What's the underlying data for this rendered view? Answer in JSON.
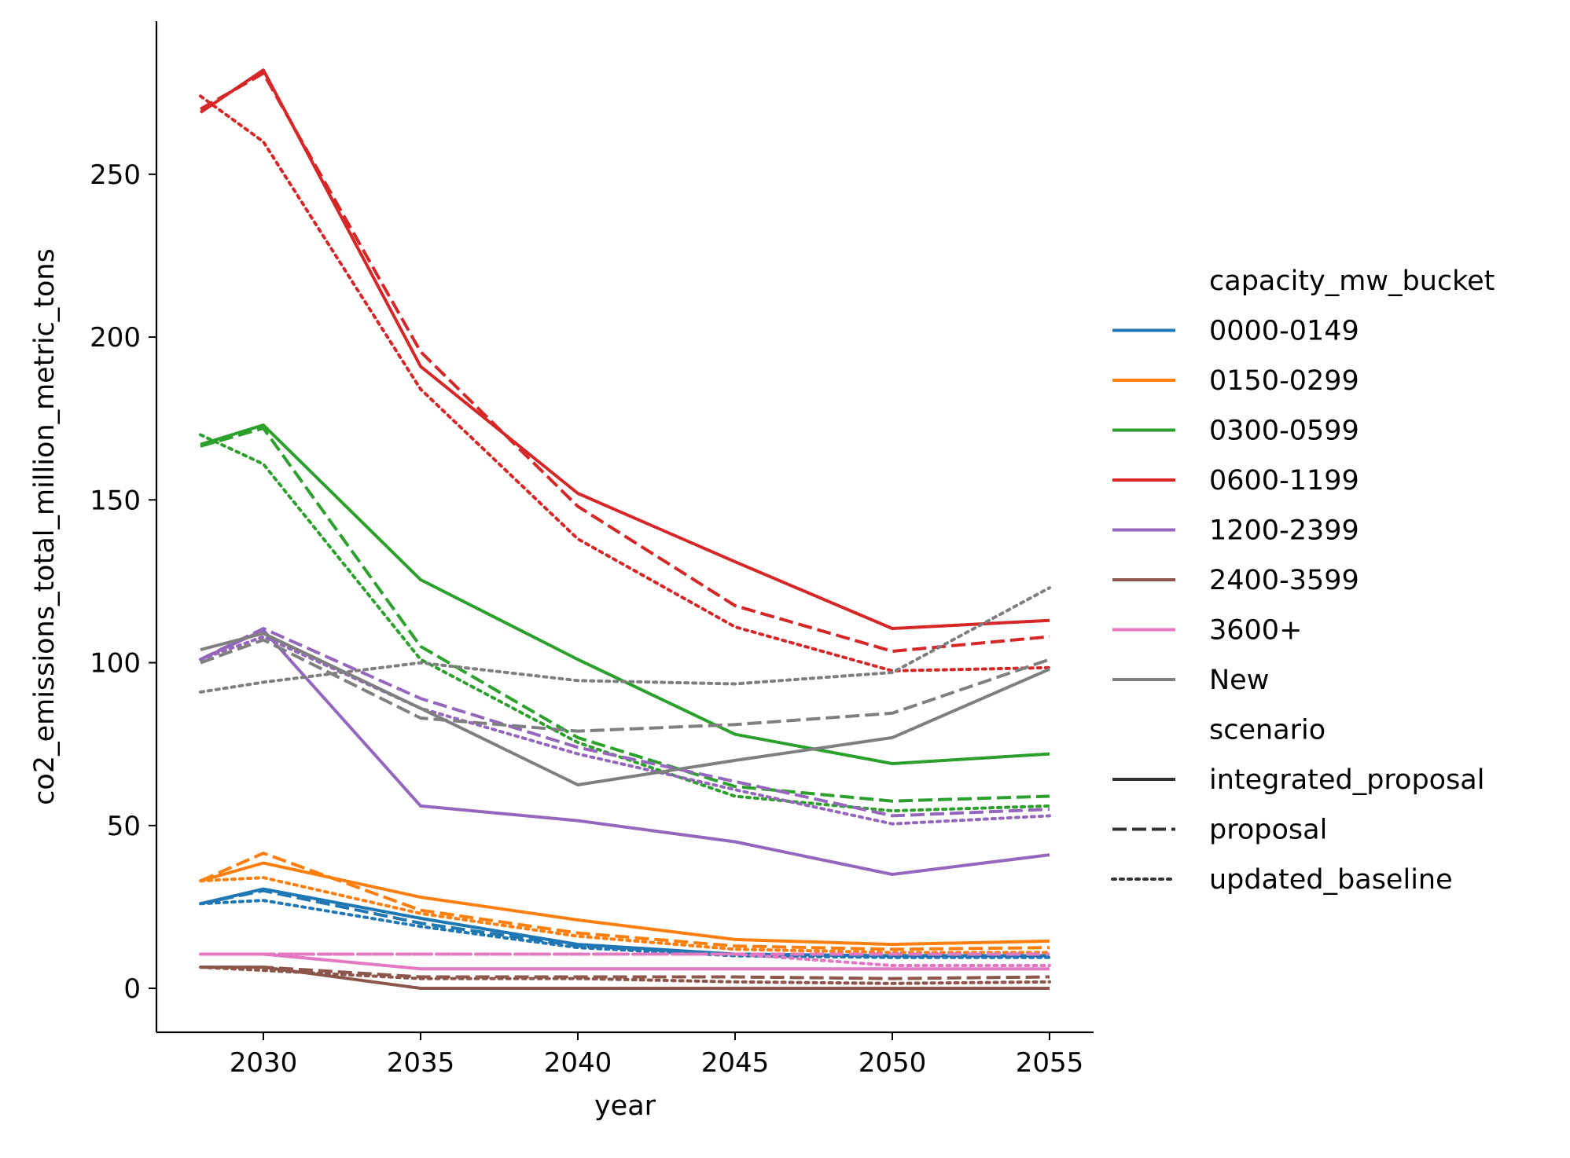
{
  "chart_data": {
    "type": "line",
    "title": "",
    "xlabel": "year",
    "ylabel": "co2_emissions_total_million_metric_tons",
    "xlim": [
      2026.6,
      2056.4
    ],
    "ylim": [
      -13.5,
      297
    ],
    "xticks": [
      2030,
      2035,
      2040,
      2045,
      2050,
      2055
    ],
    "yticks": [
      0,
      50,
      100,
      150,
      200,
      250
    ],
    "grid": false,
    "legend": {
      "placement": "right",
      "hue_title": "capacity_mw_bucket",
      "style_title": "scenario",
      "hue_entries": [
        {
          "label": "0000-0149",
          "color": "#1f77b4"
        },
        {
          "label": "0150-0299",
          "color": "#ff7f0e"
        },
        {
          "label": "0300-0599",
          "color": "#2ca02c"
        },
        {
          "label": "0600-1199",
          "color": "#d62728"
        },
        {
          "label": "1200-2399",
          "color": "#9467bd"
        },
        {
          "label": "2400-3599",
          "color": "#8c564b"
        },
        {
          "label": "3600+",
          "color": "#e377c2"
        },
        {
          "label": "New",
          "color": "#7f7f7f"
        }
      ],
      "style_entries": [
        {
          "label": "integrated_proposal",
          "dash": "solid"
        },
        {
          "label": "proposal",
          "dash": "dashed"
        },
        {
          "label": "updated_baseline",
          "dash": "dotted"
        }
      ]
    },
    "x": [
      2028,
      2030,
      2035,
      2040,
      2045,
      2050,
      2055
    ],
    "series": [
      {
        "bucket": "0000-0149",
        "scenario": "integrated_proposal",
        "values": [
          26,
          30.5,
          21.5,
          13.5,
          10.5,
          10,
          10
        ]
      },
      {
        "bucket": "0000-0149",
        "scenario": "proposal",
        "values": [
          26,
          30,
          20,
          13,
          10.5,
          10,
          10
        ]
      },
      {
        "bucket": "0000-0149",
        "scenario": "updated_baseline",
        "values": [
          26,
          27,
          19,
          12.5,
          10,
          9.5,
          9.5
        ]
      },
      {
        "bucket": "0150-0299",
        "scenario": "integrated_proposal",
        "values": [
          33,
          38.5,
          28,
          21,
          15,
          13.5,
          14.5
        ]
      },
      {
        "bucket": "0150-0299",
        "scenario": "proposal",
        "values": [
          33,
          41.5,
          24,
          17,
          13,
          12,
          12.5
        ]
      },
      {
        "bucket": "0150-0299",
        "scenario": "updated_baseline",
        "values": [
          33,
          34,
          23,
          16,
          12,
          11,
          11
        ]
      },
      {
        "bucket": "0300-0599",
        "scenario": "integrated_proposal",
        "values": [
          167,
          173,
          125.5,
          101,
          78,
          69,
          72
        ]
      },
      {
        "bucket": "0300-0599",
        "scenario": "proposal",
        "values": [
          166.5,
          172,
          105,
          77,
          62,
          57.5,
          59
        ]
      },
      {
        "bucket": "0300-0599",
        "scenario": "updated_baseline",
        "values": [
          170,
          161,
          101,
          75.5,
          59,
          54.5,
          56
        ]
      },
      {
        "bucket": "0600-1199",
        "scenario": "integrated_proposal",
        "values": [
          269,
          282,
          191,
          152,
          131,
          110.5,
          113
        ]
      },
      {
        "bucket": "0600-1199",
        "scenario": "proposal",
        "values": [
          270,
          281,
          195.5,
          148,
          117.5,
          103.5,
          108
        ]
      },
      {
        "bucket": "0600-1199",
        "scenario": "updated_baseline",
        "values": [
          274,
          260,
          184,
          138,
          111,
          97.5,
          98.5
        ]
      },
      {
        "bucket": "1200-2399",
        "scenario": "integrated_proposal",
        "values": [
          101,
          110,
          56,
          51.5,
          45,
          35,
          41
        ]
      },
      {
        "bucket": "1200-2399",
        "scenario": "proposal",
        "values": [
          101,
          110.5,
          89,
          74,
          63.5,
          53,
          55
        ]
      },
      {
        "bucket": "1200-2399",
        "scenario": "updated_baseline",
        "values": [
          101,
          108,
          86,
          72,
          61,
          50.5,
          53
        ]
      },
      {
        "bucket": "2400-3599",
        "scenario": "integrated_proposal",
        "values": [
          6.5,
          6.5,
          0,
          0,
          0,
          0,
          0
        ]
      },
      {
        "bucket": "2400-3599",
        "scenario": "proposal",
        "values": [
          6.5,
          6.5,
          3.5,
          3.5,
          3.5,
          3,
          3.5
        ]
      },
      {
        "bucket": "2400-3599",
        "scenario": "updated_baseline",
        "values": [
          6.5,
          5.5,
          3,
          3,
          2,
          1.5,
          2
        ]
      },
      {
        "bucket": "3600+",
        "scenario": "integrated_proposal",
        "values": [
          10.5,
          10.5,
          6,
          6,
          6,
          6,
          6
        ]
      },
      {
        "bucket": "3600+",
        "scenario": "proposal",
        "values": [
          10.5,
          10.5,
          10.5,
          10.5,
          10.5,
          10.5,
          10.5
        ]
      },
      {
        "bucket": "3600+",
        "scenario": "updated_baseline",
        "values": [
          10.5,
          10.5,
          10.5,
          10.5,
          10.5,
          7,
          7
        ]
      },
      {
        "bucket": "New",
        "scenario": "integrated_proposal",
        "values": [
          104,
          109,
          86,
          62.5,
          70,
          77,
          98
        ]
      },
      {
        "bucket": "New",
        "scenario": "proposal",
        "values": [
          100,
          107,
          83,
          79,
          81,
          84.5,
          101
        ]
      },
      {
        "bucket": "New",
        "scenario": "updated_baseline",
        "values": [
          91,
          94,
          100,
          94.5,
          93.5,
          97,
          123
        ]
      }
    ]
  }
}
